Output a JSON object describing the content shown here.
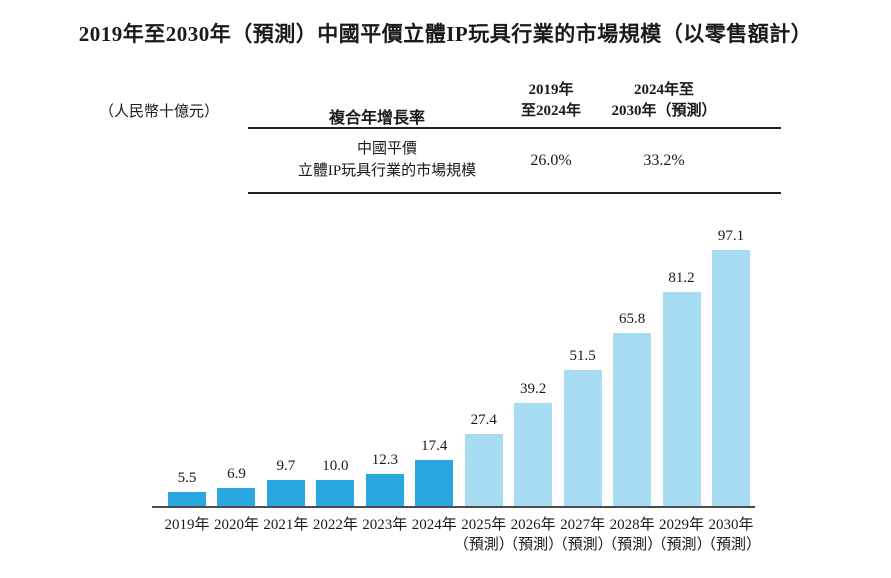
{
  "title": "2019年至2030年（預測）中國平價立體IP玩具行業的市場規模（以零售額計）",
  "unit_label": "（人民幣十億元）",
  "cagr_table": {
    "metric_header": "複合年增長率",
    "col1_header_line1": "2019年",
    "col1_header_line2": "至2024年",
    "col2_header_line1": "2024年至",
    "col2_header_line2": "2030年（預測）",
    "row_label_line1": "中國平價",
    "row_label_line2": "立體IP玩具行業的市場規模",
    "col1_value": "26.0%",
    "col2_value": "33.2%"
  },
  "chart_data": {
    "type": "bar",
    "title": "2019年至2030年（預測）中國平價立體IP玩具行業的市場規模（以零售額計）",
    "ylabel": "人民幣十億元",
    "xlabel": "",
    "categories": [
      "2019年",
      "2020年",
      "2021年",
      "2022年",
      "2023年",
      "2024年",
      "2025年（預測）",
      "2026年（預測）",
      "2027年（預測）",
      "2028年（預測）",
      "2029年（預測）",
      "2030年（預測）"
    ],
    "x_years": [
      "2019年",
      "2020年",
      "2021年",
      "2022年",
      "2023年",
      "2024年",
      "2025年",
      "2026年",
      "2027年",
      "2028年",
      "2029年",
      "2030年"
    ],
    "values": [
      5.5,
      6.9,
      9.7,
      10.0,
      12.3,
      17.4,
      27.4,
      39.2,
      51.5,
      65.8,
      81.2,
      97.1
    ],
    "forecast_mask": [
      false,
      false,
      false,
      false,
      false,
      false,
      true,
      true,
      true,
      true,
      true,
      true
    ],
    "forecast_note": "（預測）",
    "colors": {
      "actual": "#2AA7DF",
      "forecast": "#A8DCF2",
      "axis": "#4c4c4c"
    },
    "ylim": [
      0,
      100
    ],
    "grid": false,
    "legend": false,
    "data_labels_decimals": 1
  }
}
